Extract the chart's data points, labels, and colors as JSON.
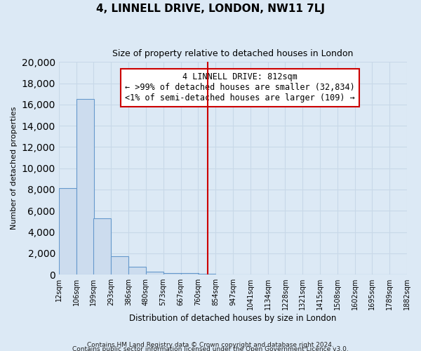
{
  "title": "4, LINNELL DRIVE, LONDON, NW11 7LJ",
  "subtitle": "Size of property relative to detached houses in London",
  "xlabel": "Distribution of detached houses by size in London",
  "ylabel": "Number of detached properties",
  "bar_color": "#ccdcee",
  "bar_edge_color": "#6699cc",
  "background_color": "#dce9f5",
  "grid_color": "#c8d8e8",
  "bin_labels": [
    "12sqm",
    "106sqm",
    "199sqm",
    "293sqm",
    "386sqm",
    "480sqm",
    "573sqm",
    "667sqm",
    "760sqm",
    "854sqm",
    "947sqm",
    "1041sqm",
    "1134sqm",
    "1228sqm",
    "1321sqm",
    "1415sqm",
    "1508sqm",
    "1602sqm",
    "1695sqm",
    "1789sqm",
    "1882sqm"
  ],
  "bin_edges": [
    12,
    106,
    199,
    293,
    386,
    480,
    573,
    667,
    760,
    854,
    947,
    1041,
    1134,
    1228,
    1321,
    1415,
    1508,
    1602,
    1695,
    1789,
    1882
  ],
  "bar_heights": [
    8100,
    16500,
    5300,
    1750,
    750,
    280,
    170,
    120,
    100,
    0,
    0,
    0,
    0,
    0,
    0,
    0,
    0,
    0,
    0,
    0
  ],
  "vline_x": 812,
  "vline_color": "#cc0000",
  "ylim": [
    0,
    20000
  ],
  "yticks": [
    0,
    2000,
    4000,
    6000,
    8000,
    10000,
    12000,
    14000,
    16000,
    18000,
    20000
  ],
  "annotation_title": "4 LINNELL DRIVE: 812sqm",
  "annotation_line1": "← >99% of detached houses are smaller (32,834)",
  "annotation_line2": "<1% of semi-detached houses are larger (109) →",
  "footnote1": "Contains HM Land Registry data © Crown copyright and database right 2024.",
  "footnote2": "Contains public sector information licensed under the Open Government Licence v3.0."
}
